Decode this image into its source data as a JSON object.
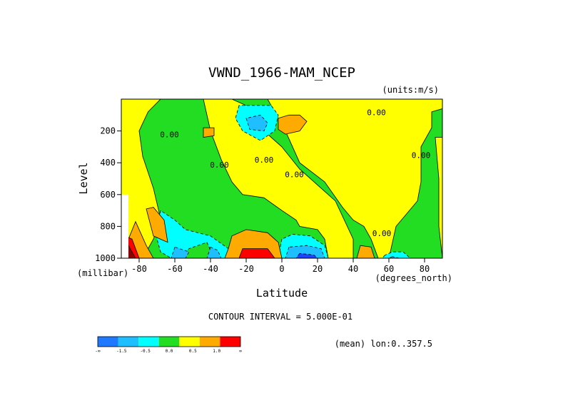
{
  "chart_data": {
    "type": "contour",
    "title": "VWND_1966-MAM_NCEP",
    "units_label": "(units:m/s)",
    "xlabel": "Latitude",
    "xunits": "(degrees_north)",
    "ylabel": "Level",
    "yunits": "(millibar)",
    "xlim": [
      -90,
      90
    ],
    "ylim": [
      1000,
      0
    ],
    "xticks": [
      {
        "value": -80,
        "label": "-80"
      },
      {
        "value": -60,
        "label": "-60"
      },
      {
        "value": -40,
        "label": "-40"
      },
      {
        "value": -20,
        "label": "-20"
      },
      {
        "value": 0,
        "label": "0"
      },
      {
        "value": 20,
        "label": "20"
      },
      {
        "value": 40,
        "label": "40"
      },
      {
        "value": 60,
        "label": "60"
      },
      {
        "value": 80,
        "label": "80"
      }
    ],
    "yticks": [
      {
        "value": 200,
        "label": "200"
      },
      {
        "value": 400,
        "label": "400"
      },
      {
        "value": 600,
        "label": "600"
      },
      {
        "value": 800,
        "label": "800"
      },
      {
        "value": 1000,
        "label": "1000"
      }
    ],
    "contour_interval_text": "CONTOUR INTERVAL = 5.000E-01",
    "contour_labels": [
      {
        "lat": -63,
        "lev": 240,
        "text": "0.00"
      },
      {
        "lat": -35,
        "lev": 430,
        "text": "0.00"
      },
      {
        "lat": -10,
        "lev": 400,
        "text": "0.00"
      },
      {
        "lat": 7,
        "lev": 490,
        "text": "0.00"
      },
      {
        "lat": 53,
        "lev": 100,
        "text": "0.00"
      },
      {
        "lat": 78,
        "lev": 370,
        "text": "0.00"
      },
      {
        "lat": 56,
        "lev": 860,
        "text": "0.00"
      }
    ],
    "regions": [
      {
        "cls": "pos",
        "pts": [
          [
            -90,
            0
          ],
          [
            -90,
            1000
          ],
          [
            -78,
            1000
          ],
          [
            -72,
            880
          ],
          [
            -68,
            750
          ],
          [
            -72,
            560
          ],
          [
            -78,
            360
          ],
          [
            -80,
            200
          ],
          [
            -75,
            80
          ],
          [
            -68,
            0
          ]
        ]
      },
      {
        "cls": "pos",
        "pts": [
          [
            -44,
            0
          ],
          [
            -40,
            200
          ],
          [
            -34,
            380
          ],
          [
            -28,
            520
          ],
          [
            -22,
            600
          ],
          [
            -10,
            620
          ],
          [
            0,
            700
          ],
          [
            8,
            760
          ],
          [
            10,
            800
          ],
          [
            20,
            820
          ],
          [
            24,
            880
          ],
          [
            26,
            1000
          ],
          [
            40,
            1000
          ],
          [
            40,
            880
          ],
          [
            30,
            640
          ],
          [
            20,
            540
          ],
          [
            10,
            440
          ],
          [
            0,
            300
          ],
          [
            -10,
            200
          ],
          [
            -16,
            60
          ],
          [
            -28,
            0
          ]
        ]
      },
      {
        "cls": "pos",
        "pts": [
          [
            -8,
            0
          ],
          [
            2,
            200
          ],
          [
            10,
            400
          ],
          [
            24,
            520
          ],
          [
            34,
            680
          ],
          [
            40,
            760
          ],
          [
            46,
            800
          ],
          [
            50,
            880
          ],
          [
            54,
            1000
          ],
          [
            60,
            1000
          ],
          [
            62,
            900
          ],
          [
            64,
            800
          ],
          [
            70,
            720
          ],
          [
            76,
            640
          ],
          [
            78,
            520
          ],
          [
            78,
            300
          ],
          [
            84,
            180
          ],
          [
            84,
            80
          ],
          [
            90,
            60
          ],
          [
            90,
            0
          ]
        ]
      },
      {
        "cls": "pos",
        "pts": [
          [
            86,
            240
          ],
          [
            88,
            500
          ],
          [
            88,
            800
          ],
          [
            90,
            1000
          ],
          [
            90,
            240
          ]
        ]
      },
      {
        "cls": "neg",
        "pts": [
          [
            -24,
            40
          ],
          [
            -26,
            120
          ],
          [
            -22,
            200
          ],
          [
            -12,
            260
          ],
          [
            -4,
            200
          ],
          [
            -2,
            100
          ],
          [
            -6,
            40
          ]
        ]
      },
      {
        "cls": "neg",
        "pts": [
          [
            -68,
            700
          ],
          [
            -70,
            880
          ],
          [
            -68,
            960
          ],
          [
            -62,
            1000
          ],
          [
            -58,
            1000
          ],
          [
            -52,
            940
          ],
          [
            -42,
            900
          ],
          [
            -38,
            1000
          ],
          [
            -28,
            1000
          ],
          [
            -30,
            940
          ],
          [
            -40,
            860
          ],
          [
            -54,
            820
          ],
          [
            -60,
            760
          ]
        ]
      },
      {
        "cls": "neg",
        "pts": [
          [
            0,
            880
          ],
          [
            -2,
            1000
          ],
          [
            26,
            1000
          ],
          [
            24,
            920
          ],
          [
            16,
            860
          ],
          [
            6,
            850
          ]
        ]
      },
      {
        "cls": "neg",
        "pts": [
          [
            58,
            980
          ],
          [
            56,
            1000
          ],
          [
            72,
            1000
          ],
          [
            68,
            960
          ],
          [
            62,
            960
          ]
        ]
      },
      {
        "cls": "neg2",
        "pts": [
          [
            -20,
            120
          ],
          [
            -18,
            190
          ],
          [
            -10,
            200
          ],
          [
            -8,
            150
          ],
          [
            -12,
            100
          ]
        ]
      },
      {
        "cls": "neg2",
        "pts": [
          [
            -60,
            930
          ],
          [
            -62,
            1000
          ],
          [
            -54,
            1000
          ],
          [
            -52,
            960
          ]
        ]
      },
      {
        "cls": "neg2",
        "pts": [
          [
            -40,
            930
          ],
          [
            -42,
            1000
          ],
          [
            -34,
            1000
          ],
          [
            -36,
            950
          ]
        ]
      },
      {
        "cls": "neg2",
        "pts": [
          [
            4,
            930
          ],
          [
            2,
            1000
          ],
          [
            24,
            1000
          ],
          [
            22,
            940
          ],
          [
            14,
            920
          ]
        ]
      },
      {
        "cls": "neg2",
        "pts": [
          [
            62,
            990
          ],
          [
            60,
            1000
          ],
          [
            66,
            1000
          ]
        ]
      },
      {
        "cls": "neg3",
        "pts": [
          [
            10,
            970
          ],
          [
            8,
            1000
          ],
          [
            20,
            1000
          ],
          [
            18,
            980
          ]
        ]
      },
      {
        "cls": "pos2",
        "pts": [
          [
            -2,
            120
          ],
          [
            -2,
            190
          ],
          [
            2,
            220
          ],
          [
            10,
            200
          ],
          [
            14,
            140
          ],
          [
            10,
            100
          ],
          [
            4,
            100
          ]
        ]
      },
      {
        "cls": "pos2",
        "pts": [
          [
            -44,
            180
          ],
          [
            -44,
            240
          ],
          [
            -38,
            230
          ],
          [
            -38,
            180
          ]
        ]
      },
      {
        "cls": "pos2",
        "pts": [
          [
            -30,
            940
          ],
          [
            -28,
            860
          ],
          [
            -20,
            820
          ],
          [
            -8,
            840
          ],
          [
            -2,
            900
          ],
          [
            0,
            1000
          ],
          [
            -32,
            1000
          ]
        ]
      },
      {
        "cls": "pos2",
        "pts": [
          [
            44,
            920
          ],
          [
            42,
            1000
          ],
          [
            52,
            1000
          ],
          [
            50,
            930
          ]
        ]
      },
      {
        "cls": "pos2",
        "pts": [
          [
            -82,
            770
          ],
          [
            -86,
            880
          ],
          [
            -86,
            1000
          ],
          [
            -72,
            1000
          ],
          [
            -76,
            920
          ]
        ]
      },
      {
        "cls": "pos2",
        "pts": [
          [
            -76,
            690
          ],
          [
            -72,
            860
          ],
          [
            -64,
            900
          ],
          [
            -66,
            760
          ],
          [
            -72,
            680
          ]
        ]
      },
      {
        "cls": "pos3",
        "pts": [
          [
            -22,
            940
          ],
          [
            -24,
            1000
          ],
          [
            -4,
            1000
          ],
          [
            -8,
            940
          ]
        ]
      },
      {
        "cls": "pos3",
        "pts": [
          [
            -88,
            860
          ],
          [
            -90,
            1000
          ],
          [
            -80,
            1000
          ],
          [
            -84,
            880
          ]
        ]
      },
      {
        "cls": "pos4",
        "pts": [
          [
            -86,
            920
          ],
          [
            -88,
            1000
          ],
          [
            -82,
            1000
          ]
        ]
      }
    ],
    "colorbar": {
      "colors": [
        "#1f78ff",
        "#1fbfff",
        "#00ffff",
        "#22dd22",
        "#ffff00",
        "#ffaa00",
        "#ff0000"
      ],
      "labels": [
        "-∞",
        "-1.5",
        "-0.5",
        "0.0",
        "0.5",
        "1.0",
        "∞"
      ]
    },
    "mean_note": "(mean) lon:0..357.5"
  }
}
